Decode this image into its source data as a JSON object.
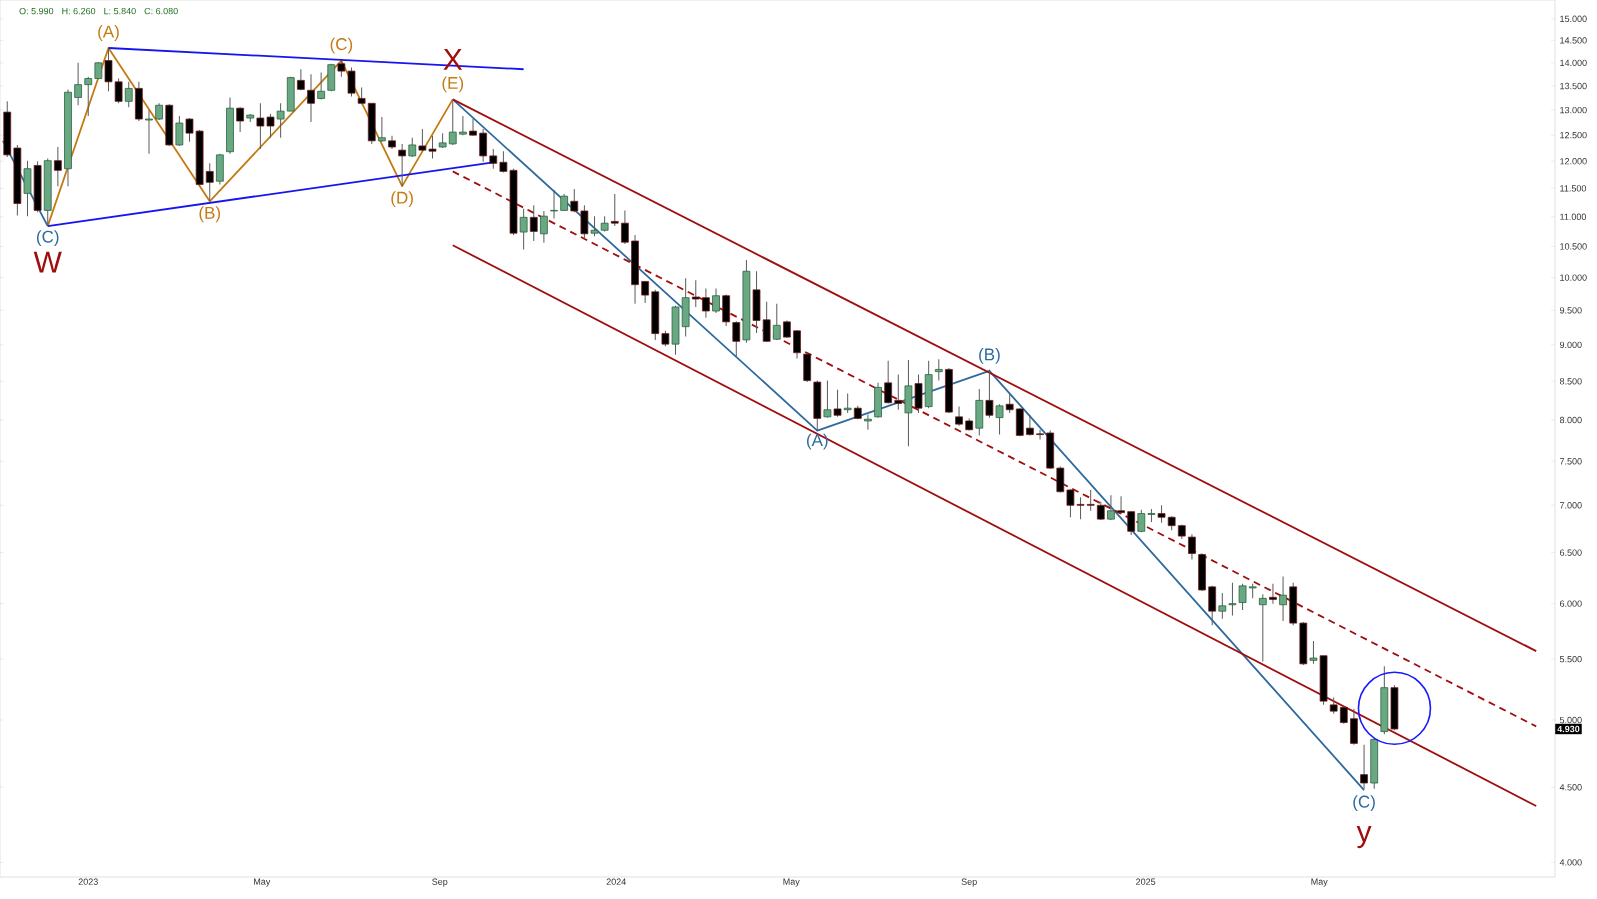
{
  "chart_data": {
    "type": "candlestick",
    "log": "y",
    "x": [
      "2022-11-06",
      "2022-11-13",
      "2022-11-20",
      "2022-11-27",
      "2022-12-04",
      "2022-12-11",
      "2022-12-18",
      "2022-12-25",
      "2023-01-01",
      "2023-01-08",
      "2023-01-15",
      "2023-01-22",
      "2023-01-29",
      "2023-02-05",
      "2023-02-12",
      "2023-02-19",
      "2023-02-26",
      "2023-03-05",
      "2023-03-12",
      "2023-03-19",
      "2023-03-26",
      "2023-04-02",
      "2023-04-09",
      "2023-04-16",
      "2023-04-23",
      "2023-04-30",
      "2023-05-07",
      "2023-05-14",
      "2023-05-21",
      "2023-05-28",
      "2023-06-04",
      "2023-06-11",
      "2023-06-18",
      "2023-06-25",
      "2023-07-02",
      "2023-07-09",
      "2023-07-16",
      "2023-07-23",
      "2023-07-30",
      "2023-08-06",
      "2023-08-13",
      "2023-08-20",
      "2023-08-27",
      "2023-09-03",
      "2023-09-10",
      "2023-09-17",
      "2023-09-24",
      "2023-10-01",
      "2023-10-08",
      "2023-10-15",
      "2023-10-22",
      "2023-10-29",
      "2023-11-05",
      "2023-11-12",
      "2023-11-19",
      "2023-11-26",
      "2023-12-03",
      "2023-12-10",
      "2023-12-17",
      "2023-12-24",
      "2023-12-31",
      "2024-01-07",
      "2024-01-14",
      "2024-01-21",
      "2024-01-28",
      "2024-02-04",
      "2024-02-11",
      "2024-02-18",
      "2024-02-25",
      "2024-03-03",
      "2024-03-10",
      "2024-03-17",
      "2024-03-24",
      "2024-03-31",
      "2024-04-07",
      "2024-04-14",
      "2024-04-21",
      "2024-04-28",
      "2024-05-05",
      "2024-05-12",
      "2024-05-19",
      "2024-05-26",
      "2024-06-02",
      "2024-06-09",
      "2024-06-16",
      "2024-06-23",
      "2024-06-30",
      "2024-07-07",
      "2024-07-14",
      "2024-07-21",
      "2024-07-28",
      "2024-08-04",
      "2024-08-11",
      "2024-08-18",
      "2024-08-25",
      "2024-09-01",
      "2024-09-08",
      "2024-09-15",
      "2024-09-22",
      "2024-09-29",
      "2024-10-06",
      "2024-10-13",
      "2024-10-20",
      "2024-10-27",
      "2024-11-03",
      "2024-11-10",
      "2024-11-17",
      "2024-11-24",
      "2024-12-01",
      "2024-12-08",
      "2024-12-15",
      "2024-12-22",
      "2024-12-29",
      "2025-01-05",
      "2025-01-12",
      "2025-01-19",
      "2025-01-26",
      "2025-02-02",
      "2025-02-09",
      "2025-02-16",
      "2025-02-23",
      "2025-03-02",
      "2025-03-09",
      "2025-03-16",
      "2025-03-23",
      "2025-03-30",
      "2025-04-06",
      "2025-04-13",
      "2025-04-20",
      "2025-04-27",
      "2025-05-04",
      "2025-05-11",
      "2025-05-18",
      "2025-05-25",
      "2025-06-01",
      "2025-06-08",
      "2025-06-15",
      "2025-06-22"
    ],
    "ohlc": [
      [
        12.96,
        13.18,
        12.08,
        12.12
      ],
      [
        12.25,
        12.31,
        11.02,
        11.23
      ],
      [
        11.41,
        12.01,
        11.01,
        11.86
      ],
      [
        11.92,
        12.0,
        11.08,
        11.11
      ],
      [
        11.11,
        12.05,
        10.84,
        12.01
      ],
      [
        12.01,
        12.27,
        11.54,
        11.83
      ],
      [
        11.86,
        13.43,
        11.54,
        13.37
      ],
      [
        13.26,
        14.0,
        13.1,
        13.53
      ],
      [
        13.53,
        13.7,
        12.88,
        13.66
      ],
      [
        13.66,
        14.02,
        13.66,
        14.0
      ],
      [
        14.05,
        14.33,
        13.39,
        13.59
      ],
      [
        13.59,
        13.66,
        13.14,
        13.18
      ],
      [
        13.18,
        13.59,
        13.06,
        13.45
      ],
      [
        13.45,
        13.59,
        12.78,
        12.82
      ],
      [
        12.8,
        13.0,
        12.14,
        12.82
      ],
      [
        12.82,
        13.14,
        12.8,
        13.1
      ],
      [
        13.1,
        13.12,
        12.29,
        12.31
      ],
      [
        12.31,
        12.88,
        12.29,
        12.74
      ],
      [
        12.82,
        12.84,
        12.37,
        12.54
      ],
      [
        12.58,
        12.6,
        11.55,
        11.57
      ],
      [
        11.81,
        11.96,
        11.27,
        11.61
      ],
      [
        11.63,
        12.14,
        11.57,
        12.12
      ],
      [
        12.18,
        13.26,
        12.14,
        13.04
      ],
      [
        13.04,
        13.06,
        12.56,
        12.78
      ],
      [
        12.84,
        12.92,
        12.76,
        12.9
      ],
      [
        12.84,
        13.14,
        12.23,
        12.68
      ],
      [
        12.86,
        12.92,
        12.45,
        12.68
      ],
      [
        12.82,
        13.14,
        12.45,
        12.98
      ],
      [
        12.98,
        13.7,
        12.98,
        13.68
      ],
      [
        13.62,
        13.86,
        13.41,
        13.43
      ],
      [
        13.41,
        13.75,
        12.76,
        13.14
      ],
      [
        13.24,
        13.79,
        13.22,
        13.39
      ],
      [
        13.41,
        13.98,
        13.39,
        13.96
      ],
      [
        13.98,
        14.05,
        13.7,
        13.82
      ],
      [
        13.82,
        13.9,
        13.28,
        13.35
      ],
      [
        13.24,
        13.47,
        13.12,
        13.14
      ],
      [
        13.14,
        13.14,
        12.33,
        12.39
      ],
      [
        12.39,
        12.86,
        12.37,
        12.45
      ],
      [
        12.39,
        12.49,
        12.23,
        12.27
      ],
      [
        12.21,
        12.33,
        11.54,
        12.1
      ],
      [
        12.1,
        12.45,
        12.08,
        12.31
      ],
      [
        12.29,
        12.62,
        12.19,
        12.21
      ],
      [
        12.23,
        12.49,
        12.05,
        12.19
      ],
      [
        12.27,
        12.54,
        12.25,
        12.35
      ],
      [
        12.33,
        13.18,
        12.31,
        12.56
      ],
      [
        12.52,
        12.88,
        12.5,
        12.56
      ],
      [
        12.58,
        12.82,
        12.49,
        12.5
      ],
      [
        12.54,
        12.62,
        11.99,
        12.1
      ],
      [
        12.1,
        12.23,
        11.86,
        11.96
      ],
      [
        11.98,
        12.19,
        11.79,
        11.81
      ],
      [
        11.83,
        11.86,
        10.69,
        10.72
      ],
      [
        10.74,
        11.14,
        10.45,
        10.99
      ],
      [
        10.99,
        11.2,
        10.59,
        10.75
      ],
      [
        10.71,
        11.1,
        10.56,
        11.01
      ],
      [
        11.1,
        11.47,
        10.97,
        11.11
      ],
      [
        11.11,
        11.4,
        11.11,
        11.36
      ],
      [
        11.27,
        11.49,
        11.08,
        11.1
      ],
      [
        11.1,
        11.2,
        10.62,
        10.71
      ],
      [
        10.72,
        11.01,
        10.67,
        10.77
      ],
      [
        10.77,
        11.01,
        10.75,
        10.89
      ],
      [
        10.92,
        11.4,
        10.84,
        10.89
      ],
      [
        10.89,
        11.11,
        10.54,
        10.57
      ],
      [
        10.59,
        10.69,
        9.6,
        9.89
      ],
      [
        9.94,
        9.94,
        9.61,
        9.73
      ],
      [
        9.78,
        9.81,
        9.07,
        9.16
      ],
      [
        9.16,
        9.2,
        8.98,
        9.01
      ],
      [
        9.01,
        9.57,
        8.86,
        9.55
      ],
      [
        9.26,
        9.99,
        9.12,
        9.69
      ],
      [
        9.7,
        9.96,
        9.55,
        9.67
      ],
      [
        9.69,
        9.83,
        9.39,
        9.49
      ],
      [
        9.49,
        9.83,
        9.46,
        9.72
      ],
      [
        9.72,
        9.74,
        9.27,
        9.33
      ],
      [
        9.32,
        9.34,
        8.84,
        9.05
      ],
      [
        9.07,
        10.28,
        9.03,
        10.1
      ],
      [
        9.81,
        10.1,
        9.17,
        9.35
      ],
      [
        9.36,
        9.63,
        9.04,
        9.05
      ],
      [
        9.08,
        9.6,
        9.07,
        9.28
      ],
      [
        9.33,
        9.35,
        9.1,
        9.11
      ],
      [
        9.2,
        9.21,
        8.81,
        8.89
      ],
      [
        8.87,
        8.89,
        8.49,
        8.51
      ],
      [
        8.49,
        8.51,
        7.87,
        8.02
      ],
      [
        8.04,
        8.51,
        8.03,
        8.13
      ],
      [
        8.14,
        8.39,
        8.04,
        8.06
      ],
      [
        8.13,
        8.34,
        8.09,
        8.15
      ],
      [
        8.15,
        8.18,
        8.01,
        8.02
      ],
      [
        7.99,
        8.07,
        7.88,
        8.01
      ],
      [
        8.04,
        8.48,
        8.03,
        8.42
      ],
      [
        8.48,
        8.78,
        8.21,
        8.22
      ],
      [
        8.25,
        8.59,
        8.13,
        8.21
      ],
      [
        8.09,
        8.79,
        7.68,
        8.44
      ],
      [
        8.47,
        8.59,
        8.09,
        8.15
      ],
      [
        8.17,
        8.78,
        8.15,
        8.59
      ],
      [
        8.63,
        8.8,
        8.51,
        8.66
      ],
      [
        8.66,
        8.68,
        8.09,
        8.1
      ],
      [
        8.04,
        8.17,
        7.93,
        7.95
      ],
      [
        7.99,
        8.02,
        7.87,
        7.88
      ],
      [
        7.9,
        8.4,
        7.81,
        8.25
      ],
      [
        8.25,
        8.66,
        8.03,
        8.06
      ],
      [
        8.03,
        8.2,
        7.82,
        8.18
      ],
      [
        8.2,
        8.33,
        8.09,
        8.13
      ],
      [
        8.14,
        8.15,
        7.8,
        7.81
      ],
      [
        7.9,
        8.06,
        7.81,
        7.82
      ],
      [
        7.83,
        7.88,
        7.76,
        7.82
      ],
      [
        7.84,
        7.87,
        7.41,
        7.42
      ],
      [
        7.42,
        7.44,
        7.14,
        7.15
      ],
      [
        7.17,
        7.18,
        6.87,
        7.0
      ],
      [
        7.01,
        7.09,
        6.85,
        7.0
      ],
      [
        7.01,
        7.17,
        6.94,
        7.0
      ],
      [
        7.0,
        7.04,
        6.84,
        6.85
      ],
      [
        6.85,
        7.11,
        6.84,
        6.94
      ],
      [
        6.94,
        7.1,
        6.91,
        6.92
      ],
      [
        6.93,
        6.93,
        6.68,
        6.72
      ],
      [
        6.72,
        6.95,
        6.71,
        6.91
      ],
      [
        6.9,
        6.96,
        6.82,
        6.91
      ],
      [
        6.91,
        7.0,
        6.81,
        6.87
      ],
      [
        6.87,
        6.88,
        6.73,
        6.78
      ],
      [
        6.78,
        6.79,
        6.64,
        6.67
      ],
      [
        6.66,
        6.69,
        6.43,
        6.49
      ],
      [
        6.48,
        6.49,
        6.12,
        6.13
      ],
      [
        6.16,
        6.17,
        5.8,
        5.93
      ],
      [
        5.93,
        6.1,
        5.86,
        5.98
      ],
      [
        5.99,
        6.2,
        5.89,
        6.0
      ],
      [
        6.01,
        6.19,
        5.94,
        6.17
      ],
      [
        6.15,
        6.19,
        6.05,
        6.16
      ],
      [
        5.99,
        6.09,
        5.48,
        6.05
      ],
      [
        6.06,
        6.19,
        6.0,
        6.04
      ],
      [
        5.99,
        6.26,
        5.84,
        6.08
      ],
      [
        6.16,
        6.2,
        5.8,
        5.82
      ],
      [
        5.82,
        5.83,
        5.45,
        5.46
      ],
      [
        5.49,
        5.66,
        5.46,
        5.51
      ],
      [
        5.53,
        5.53,
        5.12,
        5.15
      ],
      [
        5.12,
        5.18,
        5.05,
        5.07
      ],
      [
        5.1,
        5.11,
        4.97,
        4.98
      ],
      [
        5.01,
        5.09,
        4.81,
        4.82
      ],
      [
        4.59,
        4.81,
        4.49,
        4.53
      ],
      [
        4.53,
        4.86,
        4.49,
        4.85
      ],
      [
        4.91,
        5.44,
        4.89,
        5.26
      ],
      [
        5.26,
        5.28,
        4.92,
        4.93
      ]
    ],
    "series": [
      {
        "type": "line",
        "color": "#2f6a9e",
        "x": [
          "2022-11-03",
          "2022-12-04"
        ],
        "values": [
          12.39,
          10.84
        ]
      },
      {
        "type": "line",
        "color": "#c47a12",
        "x": [
          "2022-12-04",
          "2023-01-15",
          "2023-03-26",
          "2023-06-25",
          "2023-08-06",
          "2023-09-10"
        ],
        "values": [
          10.84,
          14.33,
          11.27,
          14.05,
          11.54,
          13.22
        ]
      },
      {
        "type": "line",
        "color": "#1515f0",
        "x": [
          "2023-01-15",
          "2023-10-29"
        ],
        "values": [
          14.33,
          13.86
        ]
      },
      {
        "type": "line",
        "color": "#1515f0",
        "x": [
          "2022-12-04",
          "2023-10-08"
        ],
        "values": [
          10.84,
          11.98
        ]
      },
      {
        "type": "line",
        "color": "#2f6a9e",
        "x": [
          "2023-09-10",
          "2024-05-19",
          "2024-09-15",
          "2025-06-01"
        ],
        "values": [
          13.22,
          7.87,
          8.64,
          4.48
        ]
      },
      {
        "type": "line",
        "color": "#a00d0d",
        "x": [
          "2023-09-10",
          "2025-09-28"
        ],
        "values": [
          13.22,
          5.57
        ]
      },
      {
        "type": "line",
        "color": "#a00d0d",
        "line_style": "dashed",
        "x": [
          "2023-09-10",
          "2025-09-28"
        ],
        "values": [
          11.81,
          4.95
        ]
      },
      {
        "type": "line",
        "color": "#a00d0d",
        "x": [
          "2023-09-10",
          "2025-09-28"
        ],
        "values": [
          10.52,
          4.37
        ]
      }
    ],
    "annotations": [
      "O: 5.990",
      "H: 6.260",
      "L: 5.840",
      "C: 6.080",
      {
        "text": "(C)",
        "x": "2022-12-04",
        "y": 10.84
      },
      {
        "text": "W",
        "x": "2022-12-04",
        "y": 10.84
      },
      {
        "text": "(A)",
        "x": "2023-01-15",
        "y": 14.33
      },
      {
        "text": "(B)",
        "x": "2023-03-26",
        "y": 11.27
      },
      {
        "text": "(C)",
        "x": "2023-06-25",
        "y": 14.05
      },
      {
        "text": "(D)",
        "x": "2023-08-06",
        "y": 11.54
      },
      {
        "text": "(E)",
        "x": "2023-09-10",
        "y": 13.22
      },
      {
        "text": "X",
        "x": "2023-09-10",
        "y": 13.22
      },
      {
        "text": "(A)",
        "x": "2024-05-19",
        "y": 7.87
      },
      {
        "text": "(B)",
        "x": "2024-09-15",
        "y": 8.64
      },
      {
        "text": "(C)",
        "x": "2025-06-01",
        "y": 4.48
      },
      {
        "text": "y",
        "x": "2025-06-01",
        "y": 4.48
      },
      {
        "text": "4.930",
        "y": 4.93
      }
    ],
    "xlim": [
      "2022-11-01",
      "2025-10-11"
    ],
    "xticks": [
      {
        "value": "2023-01-01",
        "label": "2023"
      },
      {
        "value": "2023-05-01",
        "label": "May"
      },
      {
        "value": "2023-09-01",
        "label": "Sep"
      },
      {
        "value": "2024-01-01",
        "label": "2024"
      },
      {
        "value": "2024-05-01",
        "label": "May"
      },
      {
        "value": "2024-09-01",
        "label": "Sep"
      },
      {
        "value": "2025-01-01",
        "label": "2025"
      },
      {
        "value": "2025-05-01",
        "label": "May"
      }
    ],
    "ylim": [
      3.91,
      15.45
    ],
    "yticks": [
      {
        "value": 4,
        "label": "4.000"
      },
      {
        "value": 4.5,
        "label": "4.500"
      },
      {
        "value": 5,
        "label": "5.000"
      },
      {
        "value": 5.5,
        "label": "5.500"
      },
      {
        "value": 6,
        "label": "6.000"
      },
      {
        "value": 6.5,
        "label": "6.500"
      },
      {
        "value": 7,
        "label": "7.000"
      },
      {
        "value": 7.5,
        "label": "7.500"
      },
      {
        "value": 8,
        "label": "8.000"
      },
      {
        "value": 8.5,
        "label": "8.500"
      },
      {
        "value": 9,
        "label": "9.000"
      },
      {
        "value": 9.5,
        "label": "9.500"
      },
      {
        "value": 10,
        "label": "10.000"
      },
      {
        "value": 10.5,
        "label": "10.500"
      },
      {
        "value": 11,
        "label": "11.000"
      },
      {
        "value": 11.5,
        "label": "11.500"
      },
      {
        "value": 12,
        "label": "12.000"
      },
      {
        "value": 12.5,
        "label": "12.500"
      },
      {
        "value": 13,
        "label": "13.000"
      },
      {
        "value": 13.5,
        "label": "13.500"
      },
      {
        "value": 14,
        "label": "14.000"
      },
      {
        "value": 14.5,
        "label": "14.500"
      },
      {
        "value": 15,
        "label": "15.000"
      }
    ]
  }
}
